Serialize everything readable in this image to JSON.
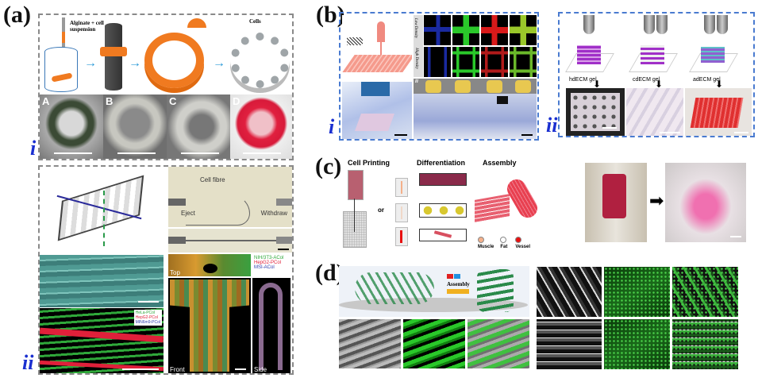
{
  "panels": {
    "a": {
      "label": "(a)",
      "i": {
        "label": "i",
        "schematic": {
          "syringe_label": "Alginate + cell suspension",
          "cells_label": "Cells"
        },
        "photos": [
          "A",
          "B",
          "C",
          "D"
        ]
      },
      "ii": {
        "label": "ii",
        "fibre": {
          "cell_fibre": "Cell fibre",
          "eject": "Eject",
          "withdraw": "Withdraw"
        },
        "legend_right": [
          "NIH/3T3-ACol",
          "HepG2-PCol",
          "MSI-ACol"
        ],
        "legend_left": [
          "HeLa-PCol",
          "HepG2-PCol",
          "MIN6m9-PCol"
        ],
        "views": {
          "top": "Top",
          "front": "Front",
          "side": "Side"
        }
      }
    },
    "b": {
      "label": "(b)",
      "i": {
        "label": "i",
        "row_labels": [
          "Low Density",
          "High Density"
        ],
        "sub_label": "ii"
      },
      "ii": {
        "label": "ii",
        "gels": [
          "hdECM gel",
          "cdECM gel",
          "adECM gel"
        ]
      }
    },
    "c": {
      "label": "(c)",
      "steps": [
        "Cell Printing",
        "Differentiation",
        "Assembly"
      ],
      "or_label": "or",
      "legend": [
        {
          "label": "Muscle",
          "color": "#f4b08a"
        },
        {
          "label": "Fat",
          "color": "#ffffff"
        },
        {
          "label": "Vessel",
          "color": "#e81010"
        }
      ]
    },
    "d": {
      "label": "(d)",
      "assembly_label": "Assembly"
    }
  },
  "colors": {
    "gray_box": "#8a8a8a",
    "blue_box": "#4a7bd0",
    "roman_numeral": "#1a2fd0",
    "arrow": "#2a9ad8"
  }
}
